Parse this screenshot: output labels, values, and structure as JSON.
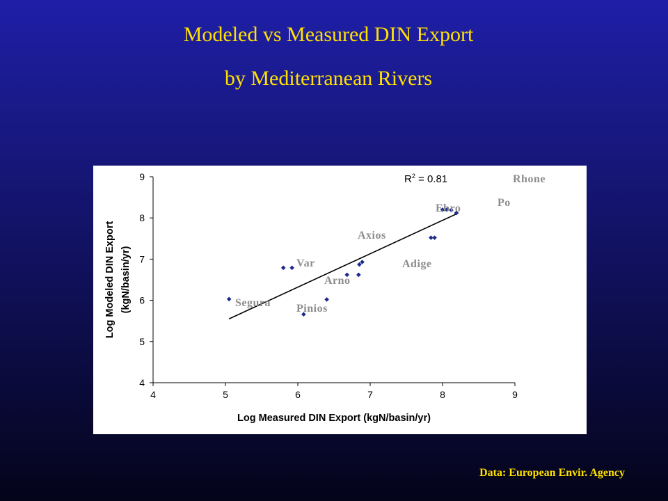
{
  "slide": {
    "title_line1": "Modeled vs Measured DIN Export",
    "title_line2": "by Mediterranean Rivers",
    "source": "Data: European Envir. Agency"
  },
  "chart_data": {
    "type": "scatter",
    "xlabel": "Log Measured DIN Export (kgN/basin/yr)",
    "ylabel_line1": "Log Modeled DIN Export",
    "ylabel_line2": "(kgN/basin/yr)",
    "xlim": [
      4,
      9
    ],
    "ylim": [
      4,
      9
    ],
    "x_ticks": [
      4,
      5,
      6,
      7,
      8,
      9
    ],
    "y_ticks": [
      4,
      5,
      6,
      7,
      8,
      9
    ],
    "grid": false,
    "marker_color": "#1c2a8c",
    "points": [
      {
        "x": 5.05,
        "y": 6.03
      },
      {
        "x": 5.8,
        "y": 6.79
      },
      {
        "x": 5.92,
        "y": 6.79
      },
      {
        "x": 6.08,
        "y": 5.66
      },
      {
        "x": 6.4,
        "y": 6.02
      },
      {
        "x": 6.68,
        "y": 6.62
      },
      {
        "x": 6.84,
        "y": 6.62
      },
      {
        "x": 6.85,
        "y": 6.87
      },
      {
        "x": 6.89,
        "y": 6.93
      },
      {
        "x": 7.84,
        "y": 7.52
      },
      {
        "x": 7.89,
        "y": 7.52
      },
      {
        "x": 8.0,
        "y": 8.2
      },
      {
        "x": 8.06,
        "y": 8.2
      },
      {
        "x": 8.12,
        "y": 8.19
      },
      {
        "x": 8.19,
        "y": 8.12
      }
    ],
    "trendline": {
      "x": [
        5.05,
        8.22
      ],
      "y": [
        5.55,
        8.12
      ]
    },
    "r2_label": "R",
    "r2_sup": "2",
    "r2_value": " = 0.81",
    "river_labels": [
      {
        "name": "Rhone"
      },
      {
        "name": "Po"
      },
      {
        "name": "Ebro"
      },
      {
        "name": "Axios"
      },
      {
        "name": "Var"
      },
      {
        "name": "Adige"
      },
      {
        "name": "Arno"
      },
      {
        "name": "Segura"
      },
      {
        "name": "Pinios"
      }
    ]
  }
}
